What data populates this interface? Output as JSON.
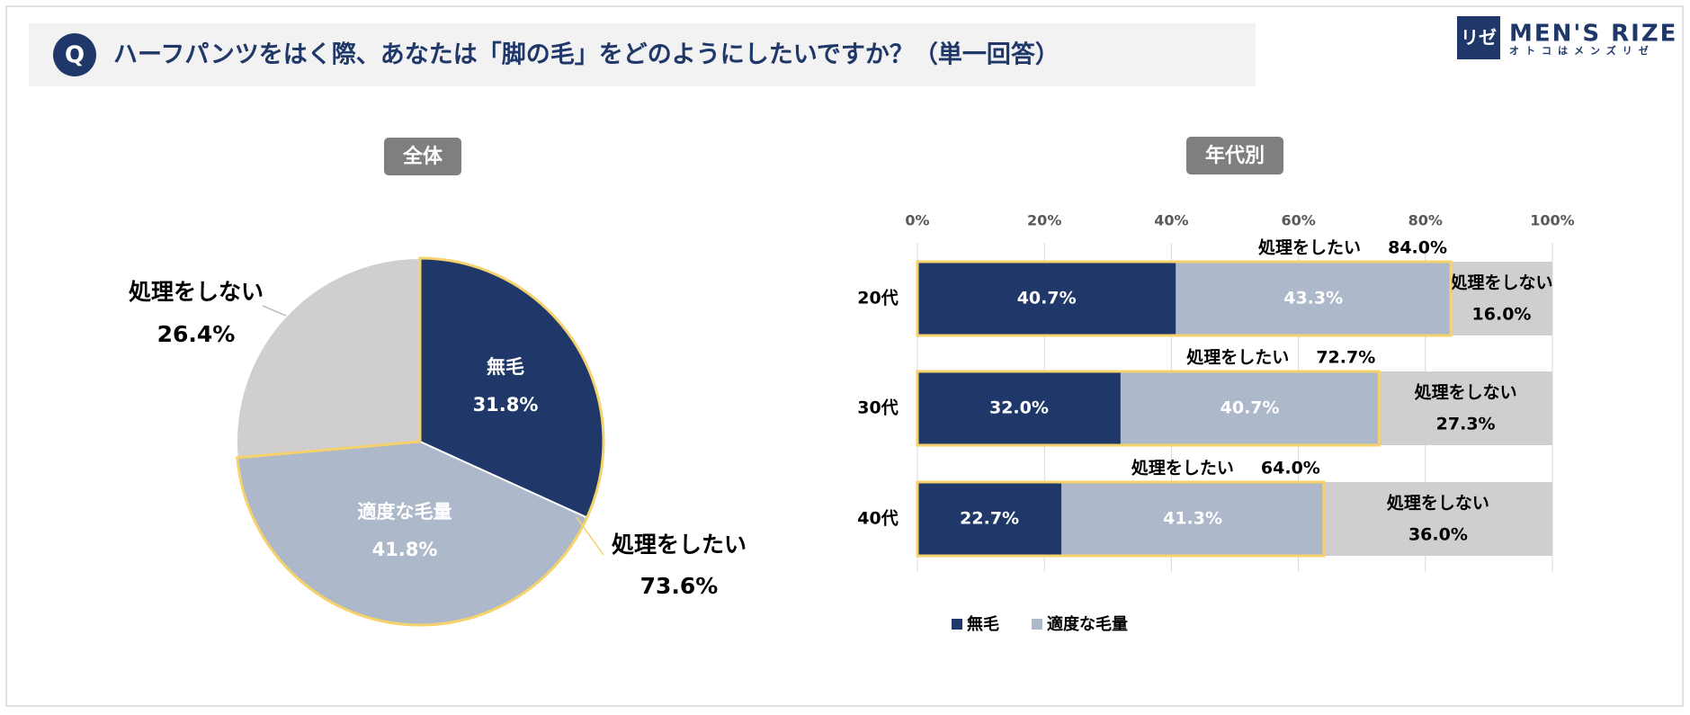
{
  "header": {
    "badge": "Q",
    "question": "ハーフパンツをはく際、あなたは「脚の毛」をどのようにしたいですか？（単一回答）",
    "logo_mark": "リゼ",
    "logo_name": "MEN'S RIZE",
    "logo_tagline": "オトコはメンズリゼ"
  },
  "chart_data": [
    {
      "type": "pie",
      "title": "全体",
      "categories": [
        "無毛",
        "適度な毛量",
        "処理をしない"
      ],
      "values": [
        31.8,
        41.8,
        26.4
      ],
      "value_labels": [
        "31.8%",
        "41.8%",
        "26.4%"
      ],
      "colors": [
        "#1f3869",
        "#adb9ca",
        "#d0cece"
      ],
      "group_label": "処理をしたい",
      "group_value": 73.6,
      "group_value_label": "73.6%",
      "group_color": "#f5d26b"
    },
    {
      "type": "bar",
      "orientation": "horizontal",
      "stacked": true,
      "title": "年代別",
      "categories": [
        "20代",
        "30代",
        "40代"
      ],
      "series": [
        {
          "name": "無毛",
          "color": "#1f3869",
          "values": [
            40.7,
            32.0,
            22.7
          ],
          "value_labels": [
            "40.7%",
            "32.0%",
            "22.7%"
          ],
          "in_legend": true
        },
        {
          "name": "適度な毛量",
          "color": "#adb9ca",
          "values": [
            43.3,
            40.7,
            41.3
          ],
          "value_labels": [
            "43.3%",
            "40.7%",
            "41.3%"
          ],
          "in_legend": true
        },
        {
          "name": "処理をしない",
          "color": "#d0cece",
          "values": [
            16.0,
            27.3,
            36.0
          ],
          "value_labels": [
            "16.0%",
            "27.3%",
            "36.0%"
          ],
          "in_legend": false
        }
      ],
      "group_label": "処理をしたい",
      "group_values": [
        84.0,
        72.7,
        64.0
      ],
      "group_value_labels": [
        "84.0%",
        "72.7%",
        "64.0%"
      ],
      "group_color": "#f5d26b",
      "xlim": [
        0,
        100
      ],
      "xticks": [
        {
          "value": 0,
          "label": "0%"
        },
        {
          "value": 20,
          "label": "20%"
        },
        {
          "value": 40,
          "label": "40%"
        },
        {
          "value": 60,
          "label": "60%"
        },
        {
          "value": 80,
          "label": "80%"
        },
        {
          "value": 100,
          "label": "100%"
        }
      ],
      "grid": true
    }
  ]
}
